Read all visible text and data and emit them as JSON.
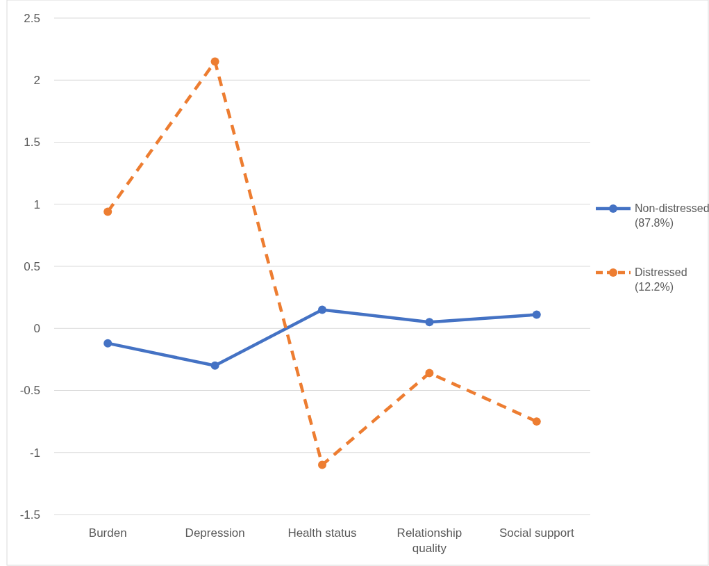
{
  "chart_data": {
    "type": "line",
    "categories": [
      "Burden",
      "Depression",
      "Health status",
      "Relationship quality",
      "Social support"
    ],
    "series": [
      {
        "name": "Non-distressed (87.8%)",
        "color": "#4472c4",
        "line_style": "solid",
        "values": [
          -0.12,
          -0.3,
          0.15,
          0.05,
          0.11
        ]
      },
      {
        "name": "Distressed (12.2%)",
        "color": "#ed7d31",
        "line_style": "dashed",
        "values": [
          0.94,
          2.15,
          -1.1,
          -0.36,
          -0.75
        ]
      }
    ],
    "ylim": [
      -1.5,
      2.5
    ],
    "yticks": [
      -1.5,
      -1,
      -0.5,
      0,
      0.5,
      1,
      1.5,
      2,
      2.5
    ],
    "grid": "y",
    "legend": "right",
    "marker": "circle"
  }
}
